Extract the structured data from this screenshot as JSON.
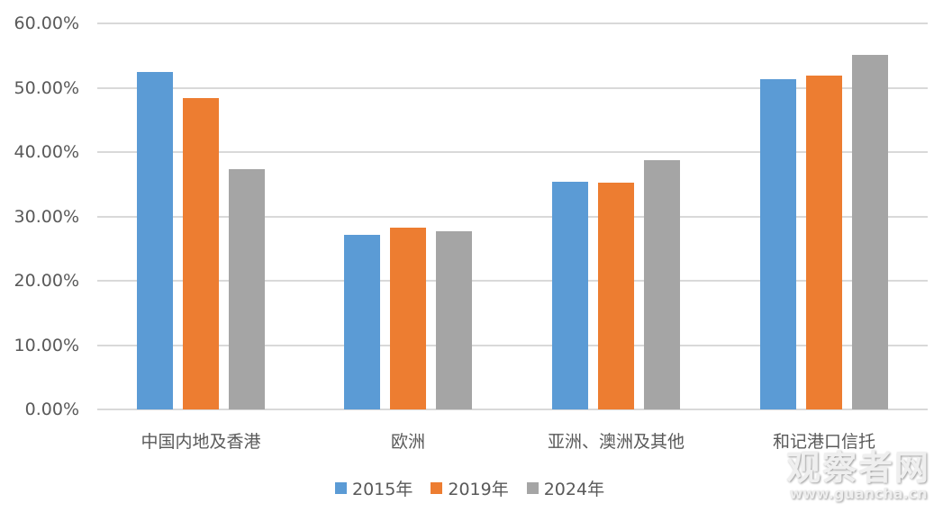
{
  "chart_data": {
    "type": "bar",
    "title": "",
    "xlabel": "",
    "ylabel": "",
    "ylim": [
      0,
      0.6
    ],
    "yticks": [
      "0.00%",
      "10.00%",
      "20.00%",
      "30.00%",
      "40.00%",
      "50.00%",
      "60.00%"
    ],
    "grid": true,
    "legend_position": "bottom",
    "categories": [
      "中国内地及香港",
      "欧洲",
      "亚洲、澳洲及其他",
      "和记港口信托"
    ],
    "series": [
      {
        "name": "2015年",
        "color": "#5B9BD5",
        "values": [
          52.4,
          27.1,
          35.4,
          51.3
        ]
      },
      {
        "name": "2019年",
        "color": "#ED7D31",
        "values": [
          48.4,
          28.3,
          35.2,
          51.9
        ]
      },
      {
        "name": "2024年",
        "color": "#A5A5A5",
        "values": [
          37.4,
          27.7,
          38.7,
          55.1
        ]
      }
    ],
    "value_unit": "%"
  },
  "watermark": {
    "title": "观察者网",
    "url": "www.guancha.cn"
  }
}
